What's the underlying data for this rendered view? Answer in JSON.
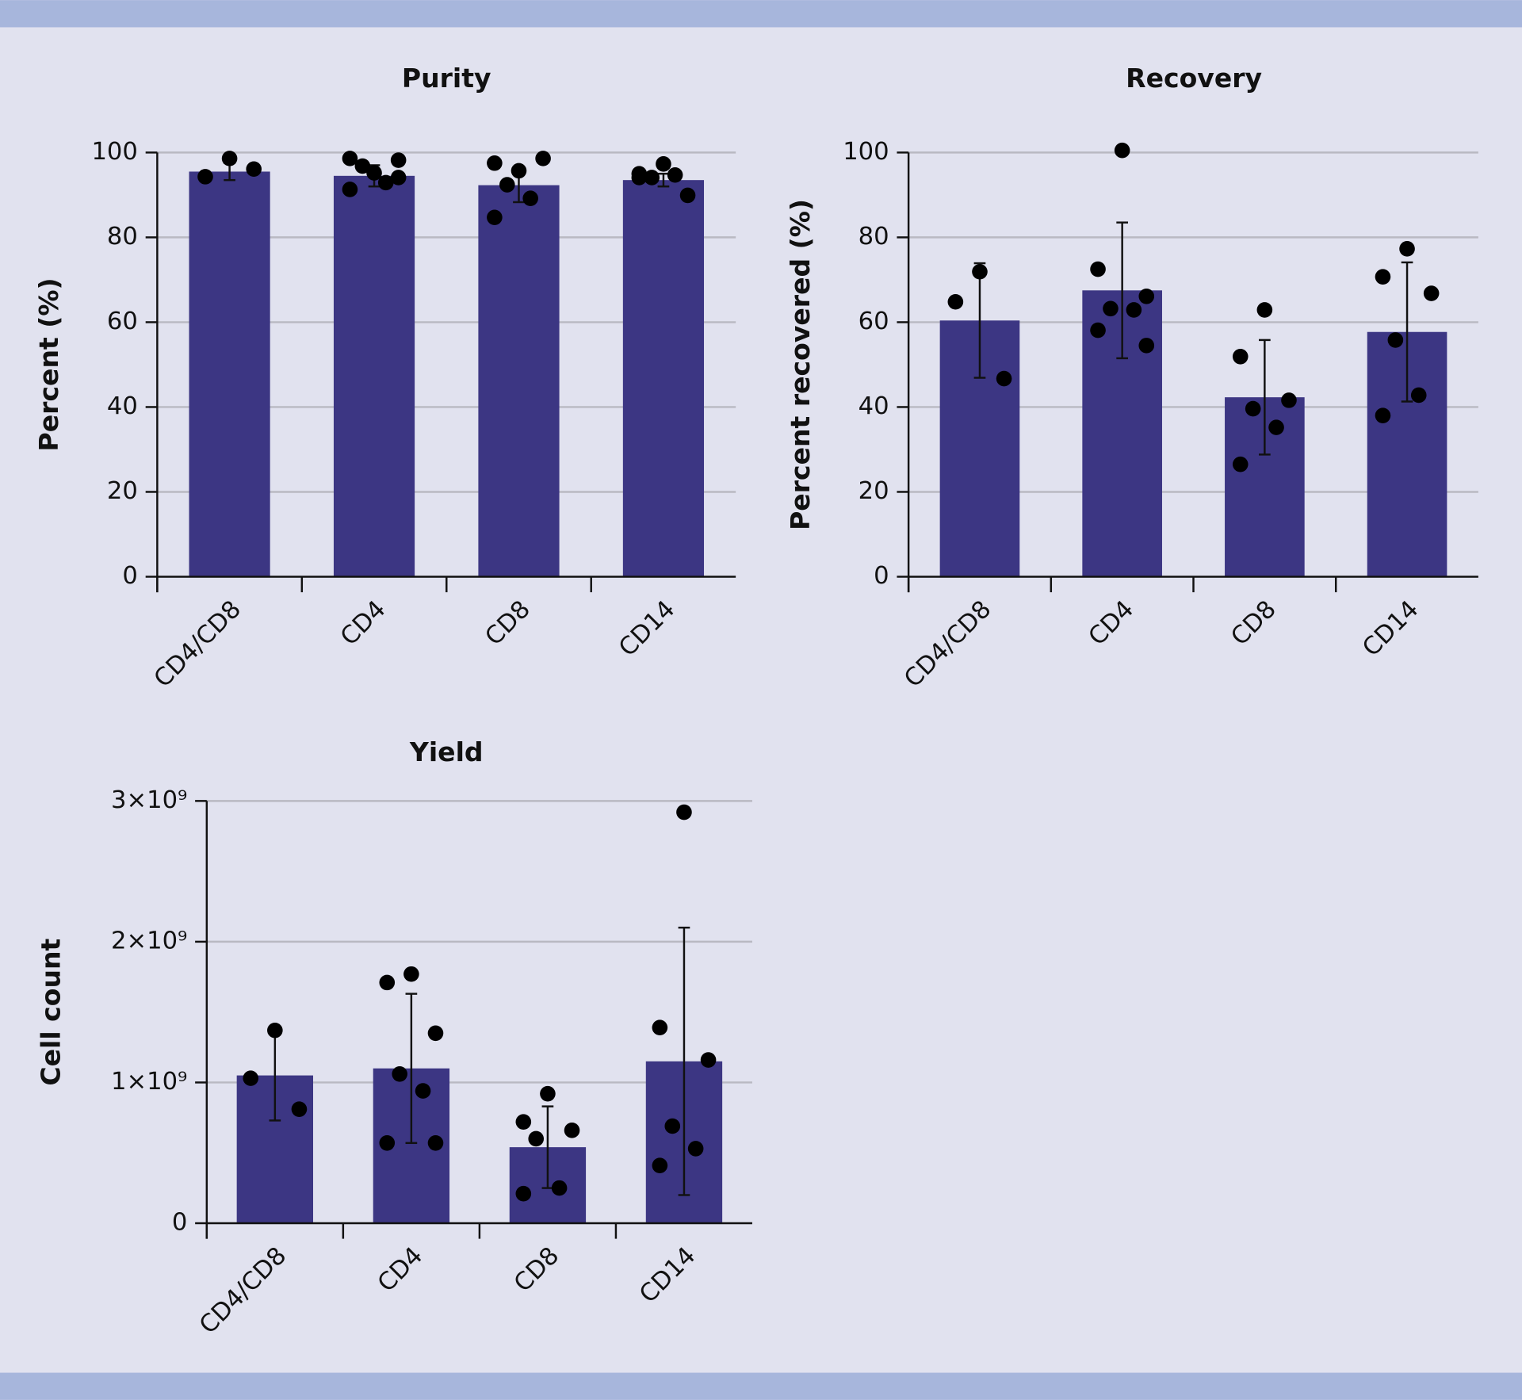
{
  "chart_data": [
    {
      "type": "bar",
      "title": "Purity",
      "y_label": "Percent (%)",
      "color": "#3c3683",
      "grid": true,
      "categories": [
        "CD4/CD8",
        "CD4",
        "CD8",
        "CD14"
      ],
      "values": [
        95.5,
        94.5,
        92.3,
        93.5
      ],
      "errors": [
        2,
        2.5,
        4,
        1.5
      ],
      "points": [
        [
          98.6,
          94.3,
          96.1
        ],
        [
          95.2,
          91.3,
          98.2,
          96.8,
          92.9,
          98.6,
          94.1
        ],
        [
          95.7,
          97.5,
          98.6,
          92.4,
          89.2,
          84.7
        ],
        [
          97.3,
          94.1,
          89.9,
          94.1,
          94.7,
          95.0
        ]
      ],
      "ylim": [
        0,
        100
      ],
      "yticks": [
        0,
        20,
        40,
        60,
        80,
        100
      ]
    },
    {
      "type": "bar",
      "title": "Recovery",
      "y_label": "Percent recovered (%)",
      "color": "#3c3683",
      "grid": true,
      "categories": [
        "CD4/CD8",
        "CD4",
        "CD8",
        "CD14"
      ],
      "values": [
        60.4,
        67.5,
        42.3,
        57.7
      ],
      "errors": [
        13.5,
        16,
        13.5,
        16.4
      ],
      "points": [
        [
          71.9,
          64.8,
          46.7
        ],
        [
          100.5,
          72.5,
          66.1,
          63.2,
          62.9,
          58.1,
          54.5
        ],
        [
          62.9,
          51.9,
          41.6,
          39.6,
          35.2,
          26.5
        ],
        [
          77.3,
          70.7,
          66.8,
          55.8,
          42.8,
          38.0
        ]
      ],
      "ylim": [
        0,
        100
      ],
      "yticks": [
        0,
        20,
        40,
        60,
        80,
        100
      ]
    },
    {
      "type": "bar",
      "title": "Yield",
      "y_label": "Cell count",
      "color": "#3c3683",
      "grid": true,
      "categories": [
        "CD4/CD8",
        "CD4",
        "CD8",
        "CD14"
      ],
      "values": [
        1050000000,
        1100000000,
        540000000,
        1150000000
      ],
      "errors": [
        320000000,
        530000000,
        290000000,
        950000000
      ],
      "points": [
        [
          1370000000,
          1030000000,
          810000000
        ],
        [
          1770000000,
          1710000000,
          1350000000,
          1060000000,
          940000000,
          570000000,
          570000000
        ],
        [
          920000000,
          720000000,
          660000000,
          600000000,
          250000000,
          210000000
        ],
        [
          2920000000,
          1390000000,
          1160000000,
          690000000,
          530000000,
          410000000
        ]
      ],
      "ylim": [
        0,
        3000000000
      ],
      "yticks": [
        0,
        {
          "value": 1000000000,
          "label": "1×10⁹"
        },
        {
          "value": 2000000000,
          "label": "2×10⁹"
        },
        {
          "value": 3000000000,
          "label": "3×10⁹"
        }
      ]
    }
  ]
}
